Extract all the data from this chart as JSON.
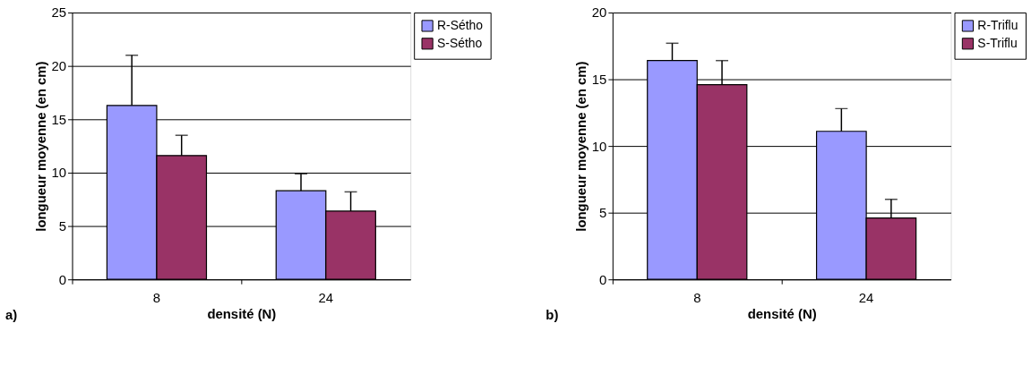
{
  "chart_data": [
    {
      "type": "bar",
      "xlabel": "densité (N)",
      "ylabel": "longueur moyenne (en cm)",
      "categories": [
        "8",
        "24"
      ],
      "ylim": [
        0,
        25
      ],
      "yticks": [
        0,
        5,
        10,
        15,
        20,
        25
      ],
      "grid": "y",
      "legend": "right",
      "annotations": [
        "a)"
      ],
      "series": [
        {
          "name": "R-Sétho",
          "color": "#9999ff",
          "values": [
            16.3,
            8.3
          ],
          "errors": [
            [
              16.3,
              21.0
            ],
            [
              8.3,
              9.9
            ]
          ]
        },
        {
          "name": "S-Sétho",
          "color": "#993366",
          "values": [
            11.6,
            6.4
          ],
          "errors": [
            [
              11.6,
              13.5
            ],
            [
              6.4,
              8.2
            ]
          ]
        }
      ]
    },
    {
      "type": "bar",
      "xlabel": "densité (N)",
      "ylabel": "longueur moyenne (en cm)",
      "categories": [
        "8",
        "24"
      ],
      "ylim": [
        0,
        20
      ],
      "yticks": [
        0,
        5,
        10,
        15,
        20
      ],
      "grid": "y",
      "legend": "right",
      "annotations": [
        "b)"
      ],
      "series": [
        {
          "name": "R-Triflu",
          "color": "#9999ff",
          "values": [
            16.4,
            11.1
          ],
          "errors": [
            [
              16.4,
              17.7
            ],
            [
              11.1,
              12.8
            ]
          ]
        },
        {
          "name": "S-Triflu",
          "color": "#993366",
          "values": [
            14.6,
            4.6
          ],
          "errors": [
            [
              14.6,
              16.4
            ],
            [
              4.6,
              6.0
            ]
          ]
        }
      ]
    }
  ]
}
